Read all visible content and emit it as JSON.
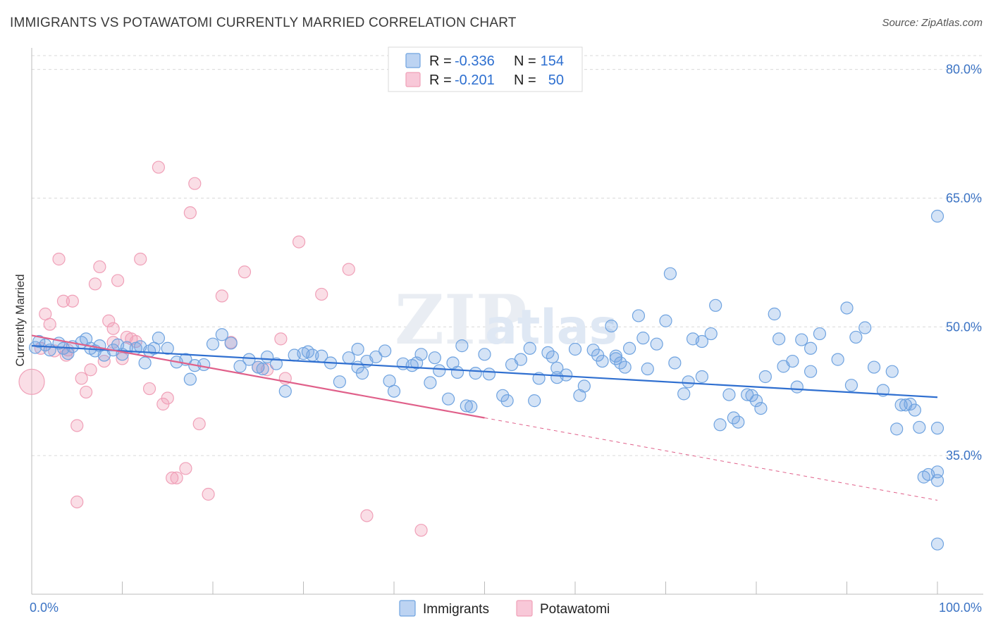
{
  "header": {
    "title": "IMMIGRANTS VS POTAWATOMI CURRENTLY MARRIED CORRELATION CHART",
    "source": "Source: ZipAtlas.com"
  },
  "legend": {
    "row1": {
      "r_label": "R = ",
      "r_value": "-0.336",
      "n_label": "N = ",
      "n_value": "154"
    },
    "row2": {
      "r_label": "R = ",
      "r_value": "-0.201",
      "n_label": "N = ",
      "n_value": "50"
    }
  },
  "colors": {
    "immigrants": "#6fa3e0",
    "immigrants_line": "#2f6fd0",
    "potawatomi": "#f0a0b8",
    "potawatomi_line": "#e0608a",
    "axis_text": "#3b73c4"
  },
  "chart_data": {
    "type": "scatter",
    "title": "IMMIGRANTS VS POTAWATOMI CURRENTLY MARRIED CORRELATION CHART",
    "ylabel": "Currently Married",
    "xlabel": "",
    "xlim": [
      0,
      100
    ],
    "ylim": [
      20,
      83
    ],
    "x_tick_labels": [
      "0.0%",
      "100.0%"
    ],
    "y_ticks": [
      35,
      50,
      65,
      80
    ],
    "y_tick_labels": [
      "35.0%",
      "50.0%",
      "65.0%",
      "80.0%"
    ],
    "grid": true,
    "legend_position": "top-center",
    "watermark": "ZIPatlas",
    "series": [
      {
        "name": "Immigrants",
        "r": -0.336,
        "n": 154,
        "trend": {
          "x0": 0,
          "y0": 47.8,
          "x1": 100,
          "y1": 41.8
        },
        "points": [
          [
            0.4,
            47.6
          ],
          [
            0.8,
            48.3
          ],
          [
            1.5,
            47.9
          ],
          [
            2,
            47.3
          ],
          [
            3,
            48.1
          ],
          [
            3.5,
            47.5
          ],
          [
            4,
            46.9
          ],
          [
            4.5,
            47.7
          ],
          [
            5.5,
            48.2
          ],
          [
            6,
            48.6
          ],
          [
            6.5,
            47.5
          ],
          [
            7,
            47.2
          ],
          [
            7.5,
            47.8
          ],
          [
            8,
            46.7
          ],
          [
            9,
            47.3
          ],
          [
            9.5,
            47.9
          ],
          [
            10,
            46.8
          ],
          [
            10.5,
            47.6
          ],
          [
            11.5,
            47.5
          ],
          [
            12,
            47.7
          ],
          [
            12.5,
            45.8
          ],
          [
            13,
            47.2
          ],
          [
            13.5,
            47.5
          ],
          [
            14,
            48.7
          ],
          [
            15,
            47.5
          ],
          [
            16,
            45.9
          ],
          [
            17,
            46.2
          ],
          [
            17.5,
            43.9
          ],
          [
            18,
            45.5
          ],
          [
            19,
            45.6
          ],
          [
            20,
            48.0
          ],
          [
            21,
            49.1
          ],
          [
            22,
            48.1
          ],
          [
            23,
            45.4
          ],
          [
            24,
            46.2
          ],
          [
            25,
            45.3
          ],
          [
            25.5,
            45.1
          ],
          [
            26,
            46.5
          ],
          [
            27,
            45.7
          ],
          [
            28,
            42.5
          ],
          [
            29,
            46.7
          ],
          [
            30,
            46.9
          ],
          [
            30.5,
            47.1
          ],
          [
            31,
            46.7
          ],
          [
            32,
            46.6
          ],
          [
            33,
            45.8
          ],
          [
            34,
            43.6
          ],
          [
            35,
            46.4
          ],
          [
            36,
            47.4
          ],
          [
            36.5,
            44.6
          ],
          [
            37,
            46.0
          ],
          [
            38,
            46.5
          ],
          [
            39,
            47.2
          ],
          [
            39.5,
            43.7
          ],
          [
            40,
            42.5
          ],
          [
            41,
            45.7
          ],
          [
            42,
            45.5
          ],
          [
            42.5,
            45.8
          ],
          [
            43,
            46.8
          ],
          [
            44,
            43.5
          ],
          [
            44.5,
            46.4
          ],
          [
            45,
            44.9
          ],
          [
            46,
            41.6
          ],
          [
            46.5,
            45.8
          ],
          [
            47,
            44.7
          ],
          [
            47.5,
            47.8
          ],
          [
            48,
            40.8
          ],
          [
            48.5,
            40.7
          ],
          [
            49,
            44.6
          ],
          [
            50,
            46.8
          ],
          [
            50.5,
            44.5
          ],
          [
            52,
            42.0
          ],
          [
            52.5,
            41.4
          ],
          [
            53,
            45.6
          ],
          [
            54,
            46.2
          ],
          [
            55,
            47.5
          ],
          [
            55.5,
            41.4
          ],
          [
            56,
            44.0
          ],
          [
            57,
            47.0
          ],
          [
            57.5,
            46.5
          ],
          [
            58,
            45.2
          ],
          [
            59,
            44.4
          ],
          [
            60,
            47.4
          ],
          [
            60.5,
            42.0
          ],
          [
            61,
            43.1
          ],
          [
            62,
            47.3
          ],
          [
            62.5,
            46.7
          ],
          [
            63,
            46.0
          ],
          [
            64,
            50.1
          ],
          [
            64.5,
            46.3
          ],
          [
            65,
            45.8
          ],
          [
            65.5,
            45.3
          ],
          [
            66,
            47.5
          ],
          [
            67,
            51.3
          ],
          [
            67.5,
            48.7
          ],
          [
            68,
            45.1
          ],
          [
            69,
            48.0
          ],
          [
            70,
            50.7
          ],
          [
            70.5,
            56.2
          ],
          [
            71,
            45.8
          ],
          [
            72,
            42.2
          ],
          [
            72.5,
            43.6
          ],
          [
            73,
            48.6
          ],
          [
            74,
            44.2
          ],
          [
            75,
            49.2
          ],
          [
            75.5,
            52.5
          ],
          [
            76,
            38.6
          ],
          [
            77,
            42.1
          ],
          [
            77.5,
            39.4
          ],
          [
            78,
            38.9
          ],
          [
            79,
            42.1
          ],
          [
            79.5,
            42.0
          ],
          [
            80,
            41.4
          ],
          [
            80.5,
            40.5
          ],
          [
            81,
            44.2
          ],
          [
            82,
            51.5
          ],
          [
            82.5,
            48.6
          ],
          [
            83,
            45.4
          ],
          [
            84,
            46.0
          ],
          [
            84.5,
            43.0
          ],
          [
            85,
            48.5
          ],
          [
            86,
            47.5
          ],
          [
            87,
            49.2
          ],
          [
            89,
            46.2
          ],
          [
            90,
            52.2
          ],
          [
            90.5,
            43.2
          ],
          [
            91,
            48.8
          ],
          [
            92,
            49.9
          ],
          [
            93,
            45.3
          ],
          [
            94,
            42.6
          ],
          [
            95,
            44.8
          ],
          [
            95.5,
            38.1
          ],
          [
            96,
            40.9
          ],
          [
            96.5,
            40.9
          ],
          [
            97,
            41.0
          ],
          [
            97.5,
            40.3
          ],
          [
            98,
            38.3
          ],
          [
            98.5,
            32.5
          ],
          [
            99,
            32.8
          ],
          [
            100,
            62.9
          ],
          [
            100,
            38.2
          ],
          [
            100,
            32.1
          ],
          [
            100,
            33.1
          ],
          [
            100,
            24.7
          ],
          [
            58,
            44.1
          ],
          [
            36,
            45.3
          ],
          [
            64.5,
            46.6
          ],
          [
            74,
            48.3
          ],
          [
            86,
            44.8
          ]
        ]
      },
      {
        "name": "Potawatomi",
        "r": -0.201,
        "n": 50,
        "trend_solid": {
          "x0": 0,
          "y0": 49.0,
          "x1": 50,
          "y1": 39.4
        },
        "trend_dashed": {
          "x0": 50,
          "y0": 39.4,
          "x1": 100,
          "y1": 29.8
        },
        "points": [
          [
            0,
            43.6
          ],
          [
            1,
            47.5
          ],
          [
            1.5,
            51.5
          ],
          [
            2,
            50.3
          ],
          [
            2.5,
            47.2
          ],
          [
            3,
            57.9
          ],
          [
            3.5,
            53.0
          ],
          [
            3.8,
            46.7
          ],
          [
            4,
            47.3
          ],
          [
            4.5,
            53.0
          ],
          [
            5,
            38.5
          ],
          [
            5.5,
            44.0
          ],
          [
            6,
            42.4
          ],
          [
            6.5,
            45.0
          ],
          [
            7,
            55.0
          ],
          [
            7.5,
            57.0
          ],
          [
            8,
            46.0
          ],
          [
            8.5,
            50.7
          ],
          [
            9,
            49.8
          ],
          [
            9.5,
            55.4
          ],
          [
            10,
            46.3
          ],
          [
            10.5,
            48.8
          ],
          [
            11,
            48.6
          ],
          [
            11.5,
            48.3
          ],
          [
            12,
            57.9
          ],
          [
            13,
            42.8
          ],
          [
            14,
            68.6
          ],
          [
            14.5,
            41.0
          ],
          [
            15,
            41.7
          ],
          [
            15.5,
            32.4
          ],
          [
            16,
            32.4
          ],
          [
            17,
            33.5
          ],
          [
            17.5,
            63.3
          ],
          [
            18,
            66.7
          ],
          [
            18.5,
            38.7
          ],
          [
            19.5,
            30.5
          ],
          [
            21,
            53.6
          ],
          [
            22,
            48.2
          ],
          [
            23.5,
            56.4
          ],
          [
            25,
            45.3
          ],
          [
            26,
            45.0
          ],
          [
            27.5,
            48.6
          ],
          [
            28,
            44.0
          ],
          [
            29.5,
            59.9
          ],
          [
            32,
            53.8
          ],
          [
            35,
            56.7
          ],
          [
            37,
            28.0
          ],
          [
            43,
            26.3
          ],
          [
            5,
            29.6
          ],
          [
            9,
            48.2
          ]
        ]
      }
    ]
  }
}
